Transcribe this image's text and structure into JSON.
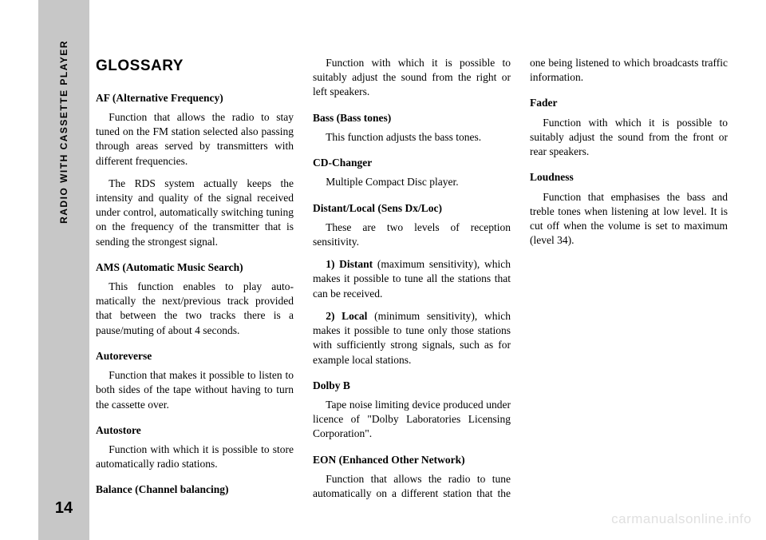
{
  "sidebar": {
    "label": "RADIO WITH CASSETTE PLAYER",
    "page_number": "14"
  },
  "heading": "GLOSSARY",
  "entries": [
    {
      "term": "AF (Alternative Frequency)",
      "defs": [
        "Function that allows the radio to stay tuned on the FM station select­ed also passing through areas served by transmitters with different fre­quencies.",
        "The RDS system actually keeps the intensity and quality of the signal received under control, automatical­ly switching tuning on the frequency of the transmitter that is sending the strongest signal."
      ]
    },
    {
      "term": "AMS (Automatic Music Search)",
      "defs": [
        "This function enables to play auto­matically the next/previous track provided that between the two tracks there is a pause/muting of about 4 seconds."
      ]
    },
    {
      "term": "Autoreverse",
      "defs": [
        "Function that makes it possible to listen to both sides of the tape with­out having to turn the cassette over."
      ]
    },
    {
      "term": "Autostore",
      "defs": [
        "Function with which it is possible to store automatically radio stations."
      ]
    },
    {
      "term": "Balance (Channel balancing)",
      "defs": [
        "Function with which it is possible to suitably adjust the sound from the right or left speakers."
      ]
    },
    {
      "term": "Bass (Bass tones)",
      "defs": [
        "This function adjusts the bass tones."
      ]
    },
    {
      "term": "CD-Changer",
      "defs": [
        "Multiple Compact Disc player."
      ]
    },
    {
      "term": "Distant/Local (Sens Dx/Loc)",
      "defs": [
        "These are two levels of reception sensitivity.",
        "<b>1) Distant</b> (maximum sensitivity), which makes it possible to tune all the stations that can be received.",
        "<b>2) Local</b> (minimum sensitivity), which makes it possible to tune only those stations with sufficiently strong signals, such as for example local sta­tions."
      ]
    },
    {
      "term": "Dolby B",
      "defs": [
        "Tape noise limiting device produced under licence of \"Dolby Laboratories Licensing Corporation\"."
      ]
    },
    {
      "term": "EON (Enhanced Other Network)",
      "defs": [
        "Function that allows the radio to tune automatically on a different sta­tion that the one being listened to which broadcasts traffic information."
      ]
    },
    {
      "term": "Fader",
      "defs": [
        "Function with which it is possible to suitably adjust the sound from the front or rear speakers."
      ]
    },
    {
      "term": "Loudness",
      "defs": [
        "Function that emphasises the bass and treble tones when listening at low level. It is cut off when the vol­ume is set to maximum (level 34)."
      ]
    }
  ],
  "watermark": "carmanualsonline.info"
}
